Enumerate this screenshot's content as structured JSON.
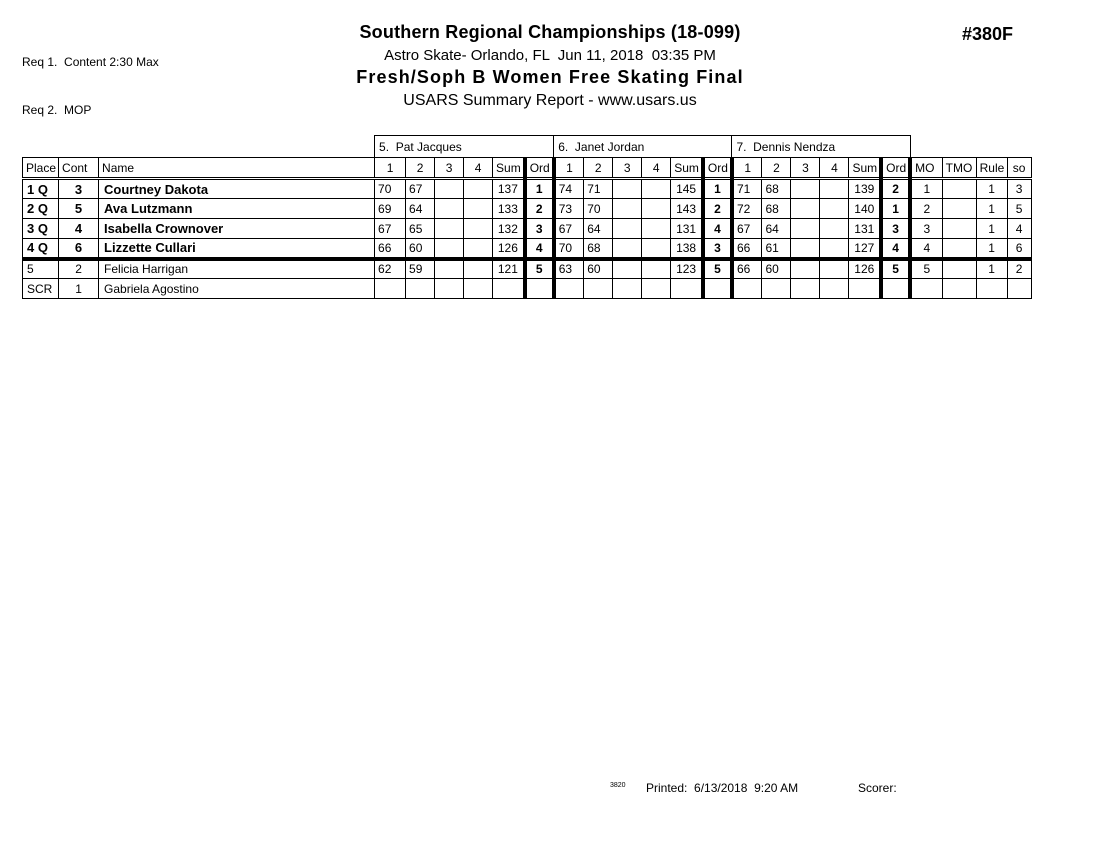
{
  "page": {
    "req_line_1": "Req 1.  Content 2:30 Max",
    "req_line_2": "Req 2.  MOP",
    "title": "Southern Regional Championships (18-099)",
    "venue_line": "Astro Skate- Orlando, FL  Jun 11, 2018  03:35 PM",
    "event_title": "Fresh/Soph B Women Free Skating Final",
    "report_line": "USARS Summary Report - www.usars.us",
    "event_number": "#380F"
  },
  "table": {
    "judges": [
      "5.  Pat Jacques",
      "6.  Janet Jordan",
      "7.  Dennis Nendza"
    ],
    "columns": {
      "place": "Place",
      "cont": "Cont",
      "name": "Name",
      "score_1": "1",
      "score_2": "2",
      "score_3": "3",
      "score_4": "4",
      "sum": "Sum",
      "ord": "Ord",
      "mo": "MO",
      "tmo": "TMO",
      "rule": "Rule",
      "so": "so"
    },
    "rows": [
      {
        "place": "1 Q",
        "cont": "3",
        "name": "Courtney Dakota",
        "qualified": true,
        "judges": [
          {
            "scores": [
              "70",
              "67",
              "",
              ""
            ],
            "sum": "137",
            "ord": "1"
          },
          {
            "scores": [
              "74",
              "71",
              "",
              ""
            ],
            "sum": "145",
            "ord": "1"
          },
          {
            "scores": [
              "71",
              "68",
              "",
              ""
            ],
            "sum": "139",
            "ord": "2"
          }
        ],
        "mo": "1",
        "tmo": "",
        "rule": "1",
        "so": "3"
      },
      {
        "place": "2 Q",
        "cont": "5",
        "name": "Ava Lutzmann",
        "qualified": true,
        "judges": [
          {
            "scores": [
              "69",
              "64",
              "",
              ""
            ],
            "sum": "133",
            "ord": "2"
          },
          {
            "scores": [
              "73",
              "70",
              "",
              ""
            ],
            "sum": "143",
            "ord": "2"
          },
          {
            "scores": [
              "72",
              "68",
              "",
              ""
            ],
            "sum": "140",
            "ord": "1"
          }
        ],
        "mo": "2",
        "tmo": "",
        "rule": "1",
        "so": "5"
      },
      {
        "place": "3 Q",
        "cont": "4",
        "name": "Isabella Crownover",
        "qualified": true,
        "judges": [
          {
            "scores": [
              "67",
              "65",
              "",
              ""
            ],
            "sum": "132",
            "ord": "3"
          },
          {
            "scores": [
              "67",
              "64",
              "",
              ""
            ],
            "sum": "131",
            "ord": "4"
          },
          {
            "scores": [
              "67",
              "64",
              "",
              ""
            ],
            "sum": "131",
            "ord": "3"
          }
        ],
        "mo": "3",
        "tmo": "",
        "rule": "1",
        "so": "4"
      },
      {
        "place": "4 Q",
        "cont": "6",
        "name": "Lizzette Cullari",
        "qualified": true,
        "judges": [
          {
            "scores": [
              "66",
              "60",
              "",
              ""
            ],
            "sum": "126",
            "ord": "4"
          },
          {
            "scores": [
              "70",
              "68",
              "",
              ""
            ],
            "sum": "138",
            "ord": "3"
          },
          {
            "scores": [
              "66",
              "61",
              "",
              ""
            ],
            "sum": "127",
            "ord": "4"
          }
        ],
        "mo": "4",
        "tmo": "",
        "rule": "1",
        "so": "6"
      },
      {
        "place": "5",
        "cont": "2",
        "name": "Felicia Harrigan",
        "qualified": false,
        "judges": [
          {
            "scores": [
              "62",
              "59",
              "",
              ""
            ],
            "sum": "121",
            "ord": "5"
          },
          {
            "scores": [
              "63",
              "60",
              "",
              ""
            ],
            "sum": "123",
            "ord": "5"
          },
          {
            "scores": [
              "66",
              "60",
              "",
              ""
            ],
            "sum": "126",
            "ord": "5"
          }
        ],
        "mo": "5",
        "tmo": "",
        "rule": "1",
        "so": "2"
      },
      {
        "place": "SCR",
        "cont": "1",
        "name": "Gabriela Agostino",
        "qualified": false,
        "judges": [
          {
            "scores": [
              "",
              "",
              "",
              ""
            ],
            "sum": "",
            "ord": ""
          },
          {
            "scores": [
              "",
              "",
              "",
              ""
            ],
            "sum": "",
            "ord": ""
          },
          {
            "scores": [
              "",
              "",
              "",
              ""
            ],
            "sum": "",
            "ord": ""
          }
        ],
        "mo": "",
        "tmo": "",
        "rule": "",
        "so": ""
      }
    ]
  },
  "footer": {
    "code": "3820",
    "printed_label": "Printed:  6/13/2018  9:20 AM",
    "scorer_label": "Scorer:"
  },
  "colors": {
    "ink": "#000000",
    "paper": "#ffffff"
  }
}
